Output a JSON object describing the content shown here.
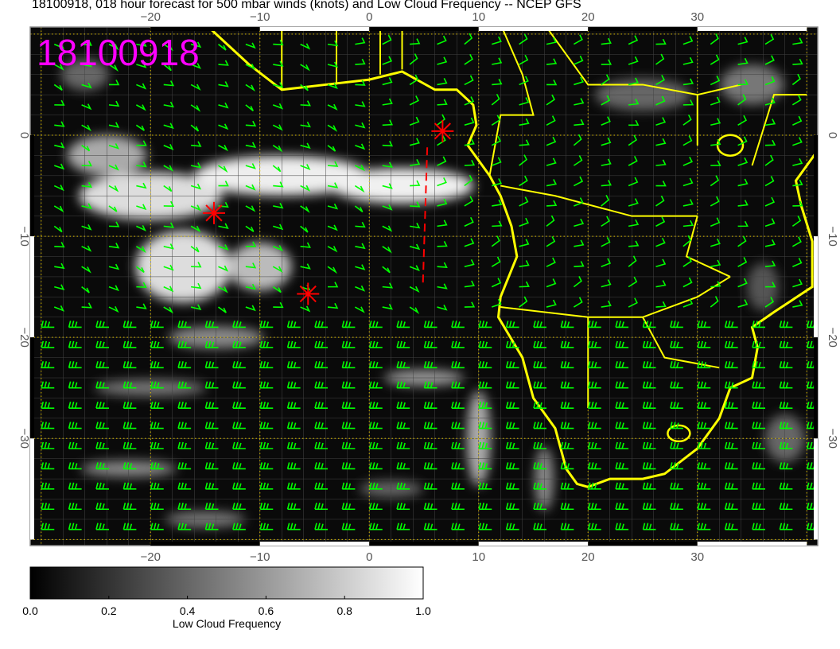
{
  "title": "18100918, 018 hour forecast for 500 mbar winds (knots) and Low Cloud Frequency -- NCEP GFS",
  "stamp": "18100918",
  "map": {
    "lon_range": [
      -31,
      41
    ],
    "lat_range": [
      -40.6,
      10.7
    ],
    "lon_ticks": [
      -20,
      -10,
      0,
      10,
      20,
      30
    ],
    "lat_ticks": [
      0,
      -10,
      -20,
      -30
    ],
    "lon_tick_labels": [
      "−20",
      "−10",
      "0",
      "10",
      "20",
      "30"
    ],
    "lat_tick_labels": [
      "0",
      "−10",
      "−20",
      "−30"
    ],
    "markers": [
      {
        "lon": -14.2,
        "lat": -7.7
      },
      {
        "lon": -5.6,
        "lat": -15.7
      },
      {
        "lon": 6.7,
        "lat": 0.4
      }
    ],
    "dashed_track": [
      {
        "lon": 5.3,
        "lat": -1.2
      },
      {
        "lon": 4.9,
        "lat": -14.8
      }
    ],
    "colors": {
      "coast": "#ffff00",
      "winds": "#00ff00",
      "markers": "#ff0000",
      "stamp": "#ff00ff",
      "grid": "#e0c000"
    }
  },
  "colorbar": {
    "label": "Low Cloud Frequency",
    "range": [
      0.0,
      1.0
    ],
    "tick_labels": [
      "0.0",
      "0.2",
      "0.4",
      "0.6",
      "0.8",
      "1.0"
    ]
  }
}
